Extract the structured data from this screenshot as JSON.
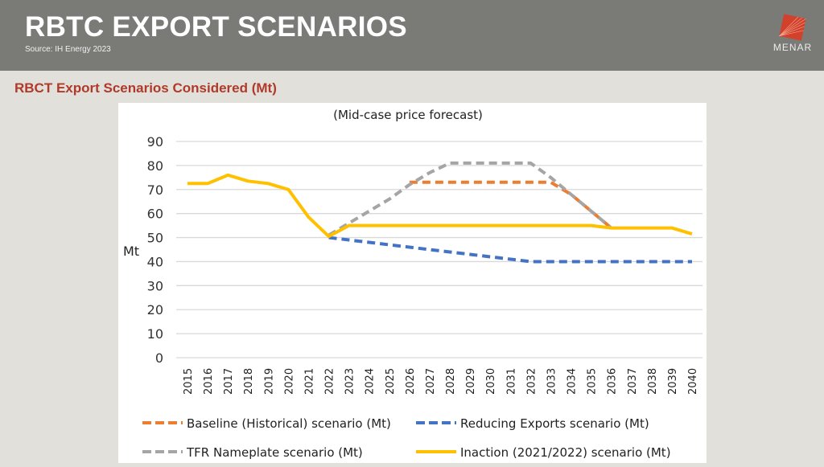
{
  "header": {
    "title": "RBTC EXPORT SCENARIOS",
    "source": "Source: IH Energy 2023",
    "logo_text": "MENAR",
    "logo_color": "#d2412c"
  },
  "section": {
    "subtitle": "RBCT Export Scenarios Considered (Mt)"
  },
  "chart_data": {
    "type": "line",
    "title": "(Mid-case price forecast)",
    "xlabel": "",
    "ylabel": "Mt",
    "ylim": [
      0,
      90
    ],
    "yticks": [
      0,
      10,
      20,
      30,
      40,
      50,
      60,
      70,
      80,
      90
    ],
    "grid": true,
    "legend_position": "bottom",
    "x": [
      "2015",
      "2016",
      "2017",
      "2018",
      "2019",
      "2020",
      "2021",
      "2022",
      "2023",
      "2024",
      "2025",
      "2026",
      "2027",
      "2028",
      "2029",
      "2030",
      "2031",
      "2032",
      "2033",
      "2034",
      "2035",
      "2036",
      "2037",
      "2038",
      "2039",
      "2040"
    ],
    "series": [
      {
        "name": "Baseline (Historical) scenario (Mt)",
        "color": "#ed7d31",
        "style": "dashed",
        "values": [
          null,
          null,
          null,
          null,
          null,
          null,
          null,
          null,
          null,
          null,
          null,
          73,
          73,
          73,
          73,
          73,
          73,
          73,
          73,
          68,
          61,
          54,
          null,
          null,
          null,
          null
        ]
      },
      {
        "name": "Reducing Exports scenario (Mt)",
        "color": "#4472c4",
        "style": "dashed",
        "values": [
          null,
          null,
          null,
          null,
          null,
          null,
          null,
          50,
          49,
          48,
          47,
          46,
          45,
          44,
          43,
          42,
          41,
          40,
          40,
          40,
          40,
          40,
          40,
          40,
          40,
          40
        ]
      },
      {
        "name": "TFR Nameplate scenario (Mt)",
        "color": "#a5a5a5",
        "style": "dashed",
        "values": [
          null,
          null,
          null,
          null,
          null,
          null,
          null,
          51,
          56,
          61,
          66,
          72,
          77,
          81,
          81,
          81,
          81,
          81,
          75,
          68,
          61,
          54,
          null,
          null,
          null,
          null
        ]
      },
      {
        "name": "Inaction (2021/2022) scenario (Mt)",
        "color": "#ffc000",
        "style": "solid",
        "values": [
          72.5,
          72.5,
          76,
          73.5,
          72.5,
          70,
          58.5,
          50.5,
          55,
          55,
          55,
          55,
          55,
          55,
          55,
          55,
          55,
          55,
          55,
          55,
          55,
          54,
          54,
          54,
          54,
          51.5
        ]
      }
    ]
  }
}
